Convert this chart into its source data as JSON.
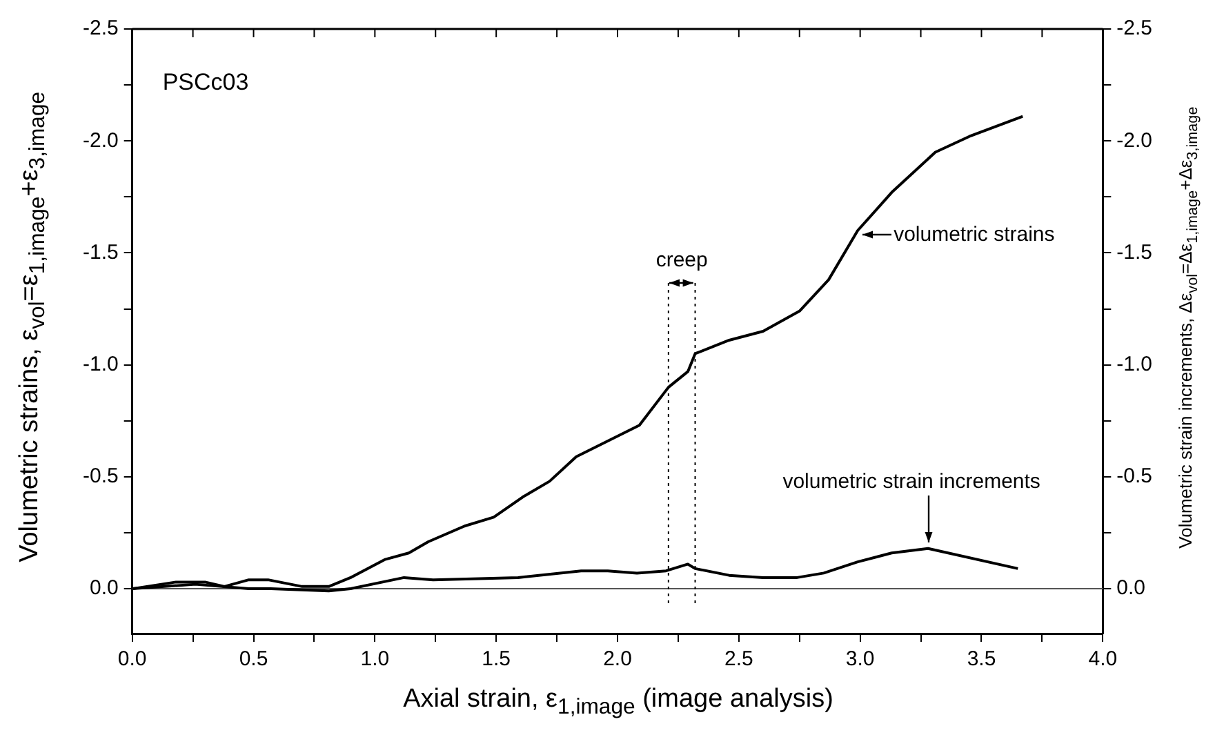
{
  "chart_data": {
    "type": "line",
    "xlabel": "Axial strain, ε$_{1,image}$ (image analysis)",
    "ylabel": "Volumetric strains, ε$_{vol}$=ε$_{1,image}$+ε$_{3,image}$",
    "y2label": "Volumetric strain increments, Δε$_{vol}$=Δε$_{1,image}$+Δε$_{3,image}$",
    "series": [
      {
        "color": "#000000",
        "x": [
          0,
          0.18,
          0.3,
          0.38,
          0.48,
          0.56,
          0.7,
          0.81,
          0.9,
          1.04,
          1.14,
          1.22,
          1.37,
          1.49,
          1.61,
          1.72,
          1.83,
          2.09,
          2.21,
          2.29,
          2.32,
          2.46,
          2.6,
          2.75,
          2.87,
          2.99,
          3.13,
          3.31,
          3.45,
          3.67
        ],
        "values": [
          0,
          -0.03,
          -0.03,
          -0.01,
          -0.04,
          -0.04,
          -0.01,
          -0.01,
          -0.05,
          -0.13,
          -0.16,
          -0.21,
          -0.28,
          -0.32,
          -0.41,
          -0.48,
          -0.59,
          -0.73,
          -0.9,
          -0.97,
          -1.05,
          -1.11,
          -1.15,
          -1.24,
          -1.38,
          -1.6,
          -1.77,
          -1.95,
          -2.02,
          -2.11
        ]
      },
      {
        "color": "#000000",
        "x": [
          0,
          0.26,
          0.48,
          0.57,
          0.81,
          0.9,
          1.12,
          1.24,
          1.59,
          1.85,
          1.96,
          2.08,
          2.2,
          2.29,
          2.32,
          2.46,
          2.6,
          2.74,
          2.85,
          2.99,
          3.13,
          3.28,
          3.65
        ],
        "values": [
          0,
          -0.02,
          0,
          0,
          0.01,
          0,
          -0.05,
          -0.04,
          -0.05,
          -0.08,
          -0.08,
          -0.07,
          -0.08,
          -0.11,
          -0.09,
          -0.06,
          -0.05,
          -0.05,
          -0.07,
          -0.12,
          -0.16,
          -0.18,
          -0.09
        ]
      }
    ],
    "xlim": [
      0,
      4
    ],
    "xticks": [
      {
        "value": 0,
        "label": "0.0"
      },
      {
        "value": 0.25,
        "label": null
      },
      0.5,
      {
        "value": 0.75,
        "label": null
      },
      {
        "value": 1,
        "label": "1.0"
      },
      {
        "value": 1.25,
        "label": null
      },
      1.5,
      {
        "value": 1.75,
        "label": null
      },
      {
        "value": 2,
        "label": "2.0"
      },
      {
        "value": 2.25,
        "label": null
      },
      2.5,
      {
        "value": 2.75,
        "label": null
      },
      {
        "value": 3,
        "label": "3.0"
      },
      {
        "value": 3.25,
        "label": null
      },
      3.5,
      {
        "value": 3.75,
        "label": null
      },
      {
        "value": 4,
        "label": "4.0"
      }
    ],
    "ylim": [
      0.2,
      -2.5
    ],
    "yticks": [
      {
        "value": 0,
        "label": "0.0"
      },
      {
        "value": -0.25,
        "label": null
      },
      -0.5,
      {
        "value": -0.75,
        "label": null
      },
      {
        "value": -1,
        "label": "-1.0"
      },
      {
        "value": -1.25,
        "label": null
      },
      -1.5,
      {
        "value": -1.75,
        "label": null
      },
      {
        "value": -2,
        "label": "-2.0"
      },
      {
        "value": -2.25,
        "label": null
      },
      -2.5
    ],
    "y2lim": [
      0.2,
      -2.5
    ],
    "y2ticks": [
      {
        "value": 0,
        "label": "0.0"
      },
      {
        "value": -0.25,
        "label": null
      },
      -0.5,
      {
        "value": -0.75,
        "label": null
      },
      {
        "value": -1,
        "label": "-1.0"
      },
      {
        "value": -1.25,
        "label": null
      },
      -1.5,
      {
        "value": -1.75,
        "label": null
      },
      {
        "value": -2,
        "label": "-2.0"
      },
      {
        "value": -2.25,
        "label": null
      },
      -2.5
    ],
    "ref_lines": [
      {
        "axis": "y",
        "value": 0,
        "color": "#555555",
        "line_style": "solid"
      },
      {
        "axis": "x",
        "value": 2.21,
        "color": "#000000",
        "line_style": "dotted"
      },
      {
        "axis": "x",
        "value": 2.32,
        "color": "#000000",
        "line_style": "dotted"
      }
    ],
    "annotations": [
      "PSCc03",
      "creep",
      {
        "text": "volumetric strains",
        "x": 2.99,
        "y": -1.58
      },
      {
        "text": "volumetric strain increments",
        "x": 3.28,
        "y": -0.18
      }
    ],
    "grid": false,
    "legend": false,
    "marker": "none",
    "line_style": "solid"
  }
}
